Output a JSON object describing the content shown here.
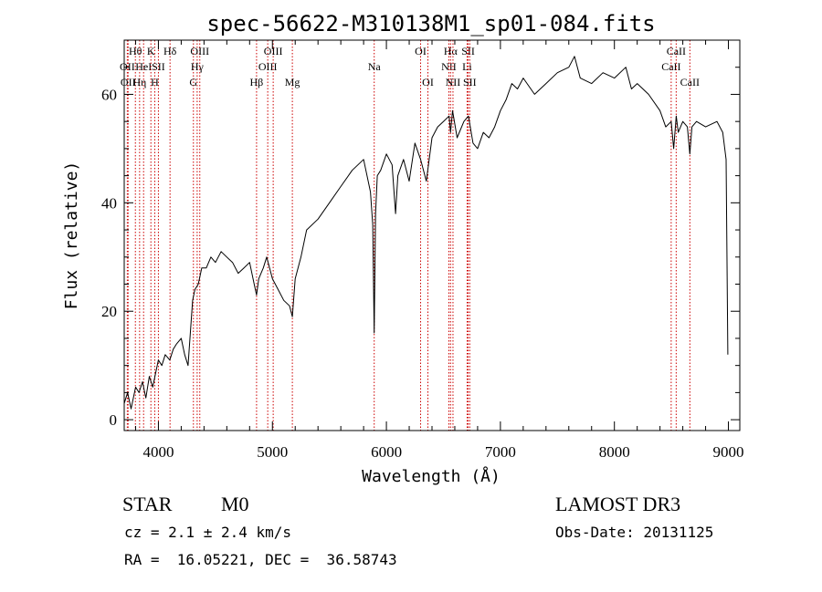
{
  "chart_data": {
    "type": "line",
    "title": "spec-56622-M310138M1_sp01-084.fits",
    "xlabel": "Wavelength (Å)",
    "ylabel": "Flux (relative)",
    "xlim": [
      3700,
      9100
    ],
    "ylim": [
      -2,
      70
    ],
    "x_ticks": [
      4000,
      5000,
      6000,
      7000,
      8000,
      9000
    ],
    "y_ticks": [
      0,
      20,
      40,
      60
    ],
    "grid": false,
    "series": [
      {
        "name": "spectrum",
        "color": "#000000",
        "x": [
          3700,
          3730,
          3760,
          3800,
          3830,
          3860,
          3890,
          3920,
          3950,
          3980,
          4000,
          4030,
          4060,
          4100,
          4130,
          4160,
          4200,
          4230,
          4260,
          4300,
          4320,
          4350,
          4380,
          4420,
          4460,
          4500,
          4550,
          4600,
          4650,
          4700,
          4750,
          4800,
          4840,
          4861,
          4880,
          4920,
          4950,
          5000,
          5050,
          5100,
          5150,
          5175,
          5200,
          5250,
          5300,
          5400,
          5500,
          5600,
          5700,
          5800,
          5860,
          5880,
          5893,
          5905,
          5920,
          5950,
          6000,
          6050,
          6080,
          6100,
          6150,
          6200,
          6250,
          6300,
          6350,
          6400,
          6450,
          6500,
          6550,
          6563,
          6580,
          6620,
          6680,
          6720,
          6760,
          6800,
          6850,
          6900,
          6950,
          7000,
          7050,
          7100,
          7150,
          7200,
          7300,
          7400,
          7500,
          7600,
          7650,
          7700,
          7800,
          7900,
          8000,
          8100,
          8150,
          8200,
          8300,
          8400,
          8450,
          8498,
          8520,
          8542,
          8560,
          8600,
          8640,
          8662,
          8680,
          8720,
          8800,
          8900,
          8950,
          8980,
          8995
        ],
        "values": [
          3,
          5,
          2,
          6,
          5,
          7,
          4,
          8,
          6,
          9,
          11,
          10,
          12,
          11,
          13,
          14,
          15,
          12,
          10,
          22,
          24,
          25,
          28,
          28,
          30,
          29,
          31,
          30,
          29,
          27,
          28,
          29,
          25,
          23,
          26,
          28,
          30,
          26,
          24,
          22,
          21,
          19,
          26,
          30,
          35,
          37,
          40,
          43,
          46,
          48,
          42,
          36,
          16,
          38,
          45,
          46,
          49,
          47,
          38,
          45,
          48,
          44,
          51,
          48,
          44,
          52,
          54,
          55,
          56,
          53,
          57,
          52,
          55,
          56,
          51,
          50,
          53,
          52,
          54,
          57,
          59,
          62,
          61,
          63,
          60,
          62,
          64,
          65,
          67,
          63,
          62,
          64,
          63,
          65,
          61,
          62,
          60,
          57,
          54,
          55,
          50,
          56,
          53,
          55,
          54,
          49,
          54,
          55,
          54,
          55,
          53,
          48,
          12
        ]
      }
    ],
    "line_color": "#cc0000",
    "line_markers": [
      {
        "wl": 3727,
        "label": "OII",
        "row": 1
      },
      {
        "wl": 3734,
        "label": "OII",
        "row": 2
      },
      {
        "wl": 3798,
        "label": "Hθ",
        "row": 0
      },
      {
        "wl": 3835,
        "label": "Hη",
        "row": 2
      },
      {
        "wl": 3870,
        "label": "HeI",
        "row": 1
      },
      {
        "wl": 3934,
        "label": "K",
        "row": 0
      },
      {
        "wl": 3968,
        "label": "H",
        "row": 2
      },
      {
        "wl": 4000,
        "label": "SII",
        "row": 1
      },
      {
        "wl": 4102,
        "label": "Hδ",
        "row": 0
      },
      {
        "wl": 4307,
        "label": "G",
        "row": 2
      },
      {
        "wl": 4340,
        "label": "Hγ",
        "row": 1
      },
      {
        "wl": 4363,
        "label": "OIII",
        "row": 0
      },
      {
        "wl": 4861,
        "label": "Hβ",
        "row": 2
      },
      {
        "wl": 4959,
        "label": "OIII",
        "row": 1
      },
      {
        "wl": 5007,
        "label": "OIII",
        "row": 0
      },
      {
        "wl": 5175,
        "label": "Mg",
        "row": 2
      },
      {
        "wl": 5893,
        "label": "Na",
        "row": 1
      },
      {
        "wl": 6300,
        "label": "OI",
        "row": 0
      },
      {
        "wl": 6364,
        "label": "OI",
        "row": 2
      },
      {
        "wl": 6548,
        "label": "NII",
        "row": 1
      },
      {
        "wl": 6563,
        "label": "Hα",
        "row": 0
      },
      {
        "wl": 6584,
        "label": "NII",
        "row": 2
      },
      {
        "wl": 6708,
        "label": "Li",
        "row": 1
      },
      {
        "wl": 6717,
        "label": "SII",
        "row": 0
      },
      {
        "wl": 6731,
        "label": "SII",
        "row": 2
      },
      {
        "wl": 8498,
        "label": "CaII",
        "row": 1
      },
      {
        "wl": 8542,
        "label": "CaII",
        "row": 0
      },
      {
        "wl": 8662,
        "label": "CaII",
        "row": 2
      }
    ]
  },
  "info": {
    "class": "STAR",
    "subclass": "M0",
    "survey": "LAMOST DR3",
    "cz": "cz = 2.1 ± 2.4 km/s",
    "obs_date": "Obs-Date: 20131125",
    "coords": "RA =  16.05221, DEC =  36.58743"
  }
}
